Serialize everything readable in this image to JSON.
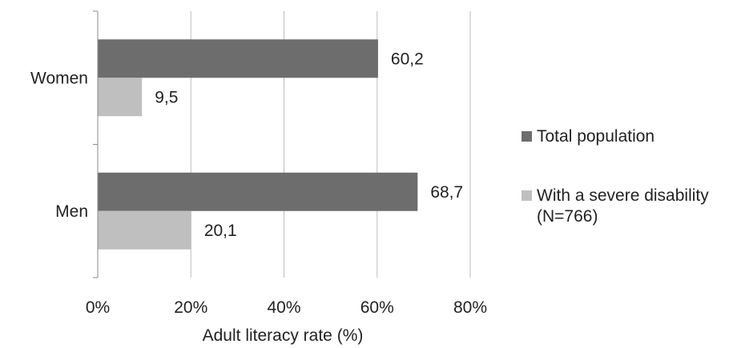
{
  "chart_data": {
    "type": "bar",
    "orientation": "horizontal",
    "categories": [
      "Women",
      "Men"
    ],
    "series": [
      {
        "name": "Total population",
        "values": [
          60.2,
          68.7
        ],
        "labels": [
          "60,2",
          "68,7"
        ],
        "color": "#6d6d6d"
      },
      {
        "name": "With a severe disability\n(N=766)",
        "values": [
          9.5,
          20.1
        ],
        "labels": [
          "9,5",
          "20,1"
        ],
        "color": "#bfbfbf"
      }
    ],
    "xlabel": "Adult literacy rate (%)",
    "ylabel": "",
    "xlim": [
      0,
      80
    ],
    "xticks": [
      0,
      20,
      40,
      60,
      80
    ],
    "xtick_labels": [
      "0%",
      "20%",
      "40%",
      "60%",
      "80%"
    ],
    "grid": "vertical",
    "legend_position": "right"
  }
}
